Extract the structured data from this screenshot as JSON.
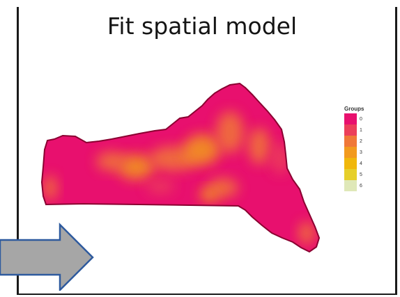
{
  "slide": {
    "title": "Fit spatial model"
  },
  "legend": {
    "title": "Groups",
    "items": [
      {
        "label": "0",
        "color": "#e8106e"
      },
      {
        "label": "1",
        "color": "#ec3f5a"
      },
      {
        "label": "2",
        "color": "#f07838"
      },
      {
        "label": "3",
        "color": "#f29a1e"
      },
      {
        "label": "4",
        "color": "#f0b70c"
      },
      {
        "label": "5",
        "color": "#e6cf2a"
      },
      {
        "label": "6",
        "color": "#dfe8b8"
      }
    ]
  },
  "map": {
    "fill_color": "#e8106e",
    "outline_color": "#8a0030",
    "hotspot_colors": [
      "#f07838",
      "#f29a1e",
      "#ec3f5a"
    ]
  },
  "arrow": {
    "fill_color": "#a6a6a6",
    "outline_color": "#2e5a9e"
  }
}
